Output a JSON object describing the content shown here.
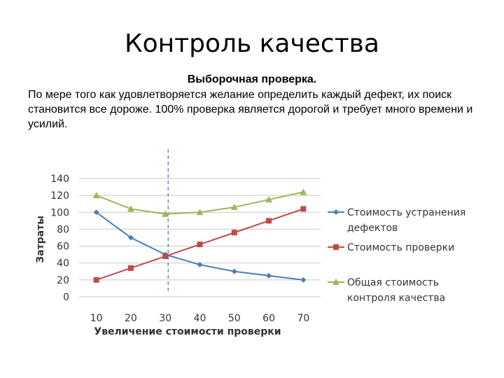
{
  "slide": {
    "title": "Контроль качества",
    "subtitle": "Выборочная проверка.",
    "body": "По мере того как удовлетворяется желание определить каждый дефект, их поиск становится все дороже. 100% проверка является  дорогой и требует много времени и усилий."
  },
  "chart_data": {
    "type": "line",
    "x": [
      10,
      20,
      30,
      40,
      50,
      60,
      70
    ],
    "xlabel": "Увеличение стоимости проверки",
    "ylabel": "Затраты",
    "ylim": [
      0,
      140
    ],
    "yticks": [
      0,
      20,
      40,
      60,
      80,
      100,
      120,
      140
    ],
    "grid": true,
    "legend_position": "right",
    "reference_line_x": 30,
    "series": [
      {
        "name": "Стоимость устранения дефектов",
        "legend_lines": [
          "Стоимость устранения",
          "дефектов"
        ],
        "values": [
          100,
          70,
          50,
          38,
          30,
          25,
          20
        ],
        "color": "#4a7ebb",
        "marker": "diamond"
      },
      {
        "name": "Стоимость проверки",
        "legend_lines": [
          "Стоимость проверки"
        ],
        "values": [
          20,
          34,
          48,
          62,
          76,
          90,
          104
        ],
        "color": "#be4b48",
        "marker": "square"
      },
      {
        "name": "Общая стоимость контроля качества",
        "legend_lines": [
          "Общая стоимость",
          "контроля качества"
        ],
        "values": [
          120,
          104,
          98,
          100,
          106,
          115,
          124
        ],
        "color": "#98b954",
        "marker": "triangle"
      }
    ]
  }
}
